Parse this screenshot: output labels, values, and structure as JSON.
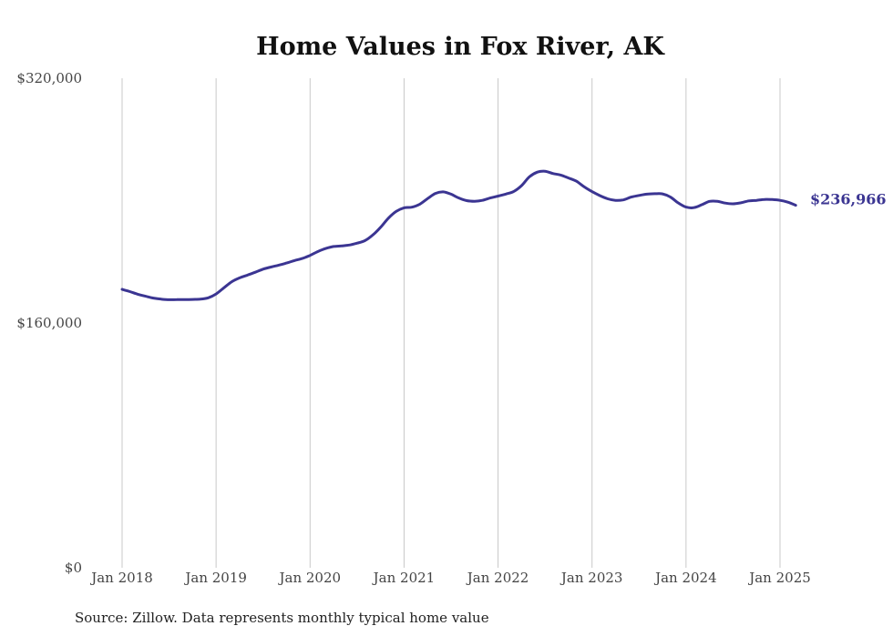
{
  "chart_data": {
    "type": "line",
    "title": "Home Values in Fox River, AK",
    "xlabel": "",
    "ylabel": "",
    "ylim": [
      0,
      320000
    ],
    "y_ticks": [
      {
        "value": 0,
        "label": "$0"
      },
      {
        "value": 160000,
        "label": "$160,000"
      },
      {
        "value": 320000,
        "label": "$320,000"
      }
    ],
    "x_ticks": [
      {
        "value": 2018,
        "label": "Jan 2018"
      },
      {
        "value": 2019,
        "label": "Jan 2019"
      },
      {
        "value": 2020,
        "label": "Jan 2020"
      },
      {
        "value": 2021,
        "label": "Jan 2021"
      },
      {
        "value": 2022,
        "label": "Jan 2022"
      },
      {
        "value": 2023,
        "label": "Jan 2023"
      },
      {
        "value": 2024,
        "label": "Jan 2024"
      },
      {
        "value": 2025,
        "label": "Jan 2025"
      }
    ],
    "grid": "vertical",
    "series_color": "#3b3592",
    "end_label": "$236,966",
    "series": [
      {
        "x": [
          2018.0,
          2018.083,
          2018.167,
          2018.25,
          2018.333,
          2018.417,
          2018.5,
          2018.583,
          2018.667,
          2018.75,
          2018.833,
          2018.917,
          2019.0,
          2019.083,
          2019.167,
          2019.25,
          2019.333,
          2019.417,
          2019.5,
          2019.583,
          2019.667,
          2019.75,
          2019.833,
          2019.917,
          2020.0,
          2020.083,
          2020.167,
          2020.25,
          2020.333,
          2020.417,
          2020.5,
          2020.583,
          2020.667,
          2020.75,
          2020.833,
          2020.917,
          2021.0,
          2021.083,
          2021.167,
          2021.25,
          2021.333,
          2021.417,
          2021.5,
          2021.583,
          2021.667,
          2021.75,
          2021.833,
          2021.917,
          2022.0,
          2022.083,
          2022.167,
          2022.25,
          2022.333,
          2022.417,
          2022.5,
          2022.583,
          2022.667,
          2022.75,
          2022.833,
          2022.917,
          2023.0,
          2023.083,
          2023.167,
          2023.25,
          2023.333,
          2023.417,
          2023.5,
          2023.583,
          2023.667,
          2023.75,
          2023.833,
          2023.917,
          2024.0,
          2024.083,
          2024.167,
          2024.25,
          2024.333,
          2024.417,
          2024.5,
          2024.583,
          2024.667,
          2024.75,
          2024.833,
          2024.917,
          2025.0,
          2025.083,
          2025.167
        ],
        "values": [
          182000,
          180500,
          178800,
          177500,
          176300,
          175600,
          175200,
          175300,
          175300,
          175400,
          175600,
          176500,
          179000,
          183000,
          187000,
          189500,
          191300,
          193200,
          195200,
          196600,
          197800,
          199200,
          200800,
          202200,
          204200,
          206700,
          208700,
          210000,
          210400,
          211000,
          212200,
          213800,
          217500,
          222500,
          228500,
          233000,
          235300,
          235700,
          237700,
          241300,
          244700,
          245700,
          244200,
          241700,
          240000,
          239600,
          240200,
          241700,
          243000,
          244300,
          246000,
          249800,
          255500,
          258600,
          259200,
          257700,
          256700,
          254800,
          252700,
          249000,
          245900,
          243300,
          241200,
          240200,
          240500,
          242300,
          243400,
          244200,
          244500,
          244400,
          242400,
          238500,
          235800,
          235400,
          237300,
          239500,
          239600,
          238400,
          237900,
          238600,
          239800,
          240200,
          240800,
          240700,
          240200,
          239000,
          236966
        ]
      }
    ]
  },
  "source_text": "Source: Zillow. Data represents monthly typical home value"
}
